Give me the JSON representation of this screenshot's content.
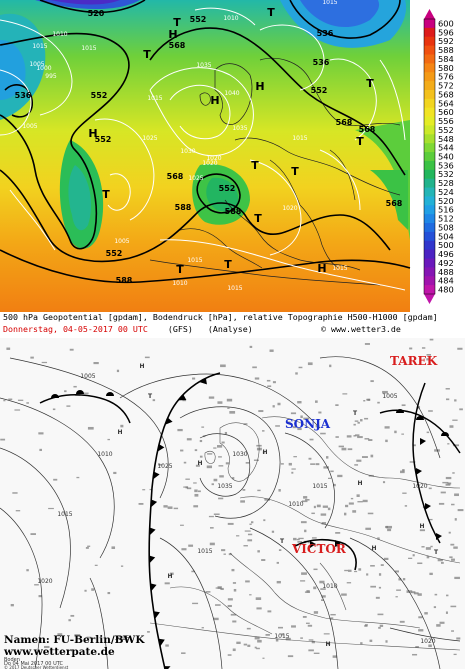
{
  "top_map": {
    "caption_line1": "500 hPa Geopotential [gpdam], Bodendruck [hPa], relative Topographie H500-H1000 [gpdam]",
    "caption_date": "Donnerstag, 04-05-2017  00 UTC",
    "caption_model": "(GFS)",
    "caption_type": "(Analyse)",
    "caption_credit": "© www.wetter3.de",
    "colorbar_ticks": [
      "600",
      "596",
      "592",
      "588",
      "584",
      "580",
      "576",
      "572",
      "568",
      "564",
      "560",
      "556",
      "552",
      "548",
      "544",
      "540",
      "536",
      "532",
      "528",
      "524",
      "520",
      "516",
      "512",
      "508",
      "504",
      "500",
      "496",
      "492",
      "488",
      "484",
      "480"
    ],
    "colorbar_colors": [
      "#c8007f",
      "#dd1b1b",
      "#e8340e",
      "#f05010",
      "#f26a12",
      "#f58514",
      "#f49a16",
      "#f3ac1a",
      "#f3c11d",
      "#f2d520",
      "#f1e424",
      "#e4ec26",
      "#cbe92a",
      "#a7e02e",
      "#7fd835",
      "#5ccd3c",
      "#3bc245",
      "#22b65d",
      "#21b38c",
      "#24b5b6",
      "#23b1d6",
      "#209fe5",
      "#1e86e6",
      "#1f6be0",
      "#2450d8",
      "#3036cc",
      "#4b22c2",
      "#6a18bb",
      "#8515b3",
      "#a013ac",
      "#c015a9"
    ],
    "geopotential_labels": [
      "520",
      "552",
      "536",
      "536",
      "552",
      "568",
      "552",
      "536",
      "588",
      "568",
      "552",
      "588",
      "552",
      "588",
      "568",
      "552",
      "568",
      "568"
    ],
    "pressure_labels": [
      "1015",
      "1005",
      "1010",
      "1000",
      "995",
      "1015",
      "1005",
      "1035",
      "1040",
      "1030",
      "1035",
      "1025",
      "1020",
      "1015",
      "1005",
      "1010",
      "1015",
      "1025",
      "1020",
      "1015",
      "1015",
      "1015",
      "1010",
      "1015",
      "1020"
    ],
    "high_marker": "H",
    "low_marker": "T"
  },
  "bottom_map": {
    "low_names": [
      "TAREK",
      "SONJA",
      "VICTOR"
    ],
    "footer_names": "Namen: FU-Berlin/BWK",
    "footer_url": "www.wetterpate.de",
    "footer_tiny1": "Boden",
    "footer_tiny2": "Do 04 Mai 2017 00 UTC",
    "footer_tiny3": "© 2017 Deutscher Wetterdienst",
    "isobar_labels": [
      "1005",
      "1010",
      "1015",
      "1020",
      "1025",
      "1030",
      "1035",
      "1015",
      "1010",
      "1005",
      "1020",
      "1015",
      "1010",
      "1015",
      "1020",
      "1015"
    ],
    "high_marker": "H",
    "low_marker": "T",
    "colors": {
      "low_name": "#d81d1d",
      "sonja": "#1a2fd0"
    }
  }
}
